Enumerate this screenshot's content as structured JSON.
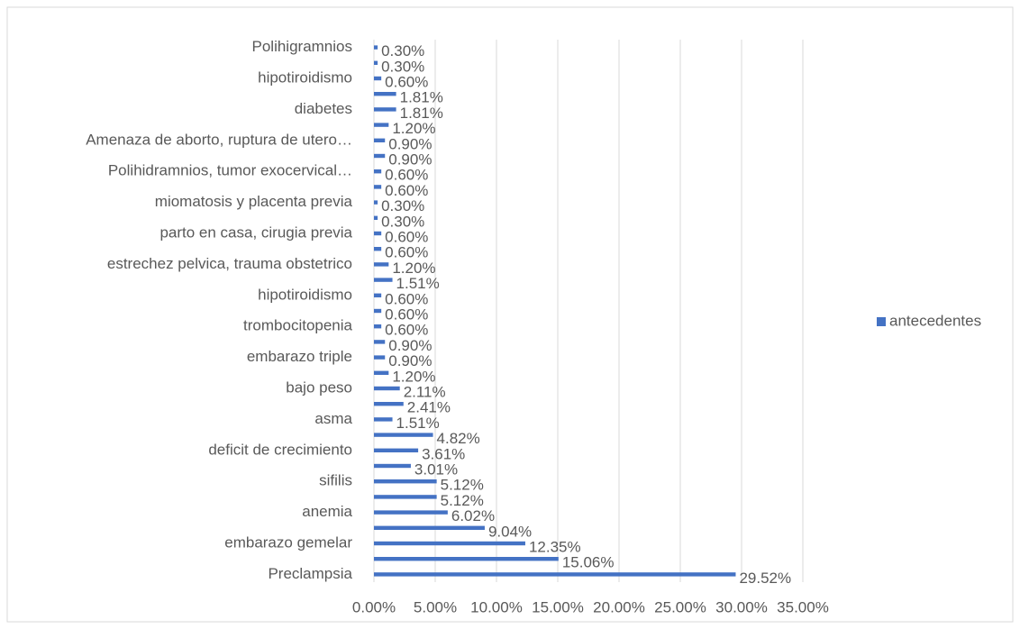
{
  "chart_data": {
    "type": "bar",
    "orientation": "horizontal",
    "categories": [
      "Polihigramnios",
      null,
      "hipotiroidismo",
      null,
      "diabetes",
      null,
      "Amenaza de aborto, ruptura de utero…",
      null,
      "Polihidramnios, tumor exocervical…",
      null,
      "miomatosis y placenta previa",
      null,
      "parto en casa, cirugia previa",
      null,
      "estrechez pelvica, trauma obstetrico",
      null,
      "hipotiroidismo",
      null,
      "trombocitopenia",
      null,
      "embarazo triple",
      null,
      "bajo peso",
      null,
      "asma",
      null,
      "deficit de crecimiento",
      null,
      "sifilis",
      null,
      "anemia",
      null,
      "embarazo gemelar",
      null,
      "Preclampsia"
    ],
    "series": [
      {
        "name": "antecedentes",
        "color": "#4472c4",
        "values": [
          0.3,
          0.3,
          0.6,
          1.81,
          1.81,
          1.2,
          0.9,
          0.9,
          0.6,
          0.6,
          0.3,
          0.3,
          0.6,
          0.6,
          1.2,
          1.51,
          0.6,
          0.6,
          0.6,
          0.9,
          0.9,
          1.2,
          2.11,
          2.41,
          1.51,
          4.82,
          3.61,
          3.01,
          5.12,
          5.12,
          6.02,
          9.04,
          12.35,
          15.06,
          29.52
        ],
        "value_labels": [
          "0.30%",
          "0.30%",
          "0.60%",
          "1.81%",
          "1.81%",
          "1.20%",
          "0.90%",
          "0.90%",
          "0.60%",
          "0.60%",
          "0.30%",
          "0.30%",
          "0.60%",
          "0.60%",
          "1.20%",
          "1.51%",
          "0.60%",
          "0.60%",
          "0.60%",
          "0.90%",
          "0.90%",
          "1.20%",
          "2.11%",
          "2.41%",
          "1.51%",
          "4.82%",
          "3.61%",
          "3.01%",
          "5.12%",
          "5.12%",
          "6.02%",
          "9.04%",
          "12.35%",
          "15.06%",
          "29.52%"
        ]
      }
    ],
    "xlim": [
      0,
      35
    ],
    "xticks": [
      {
        "value": 0,
        "label": "0.00%"
      },
      {
        "value": 5,
        "label": "5.00%"
      },
      {
        "value": 10,
        "label": "10.00%"
      },
      {
        "value": 15,
        "label": "15.00%"
      },
      {
        "value": 20,
        "label": "20.00%"
      },
      {
        "value": 25,
        "label": "25.00%"
      },
      {
        "value": 30,
        "label": "30.00%"
      },
      {
        "value": 35,
        "label": "35.00%"
      }
    ],
    "grid": true,
    "legend": "right"
  }
}
